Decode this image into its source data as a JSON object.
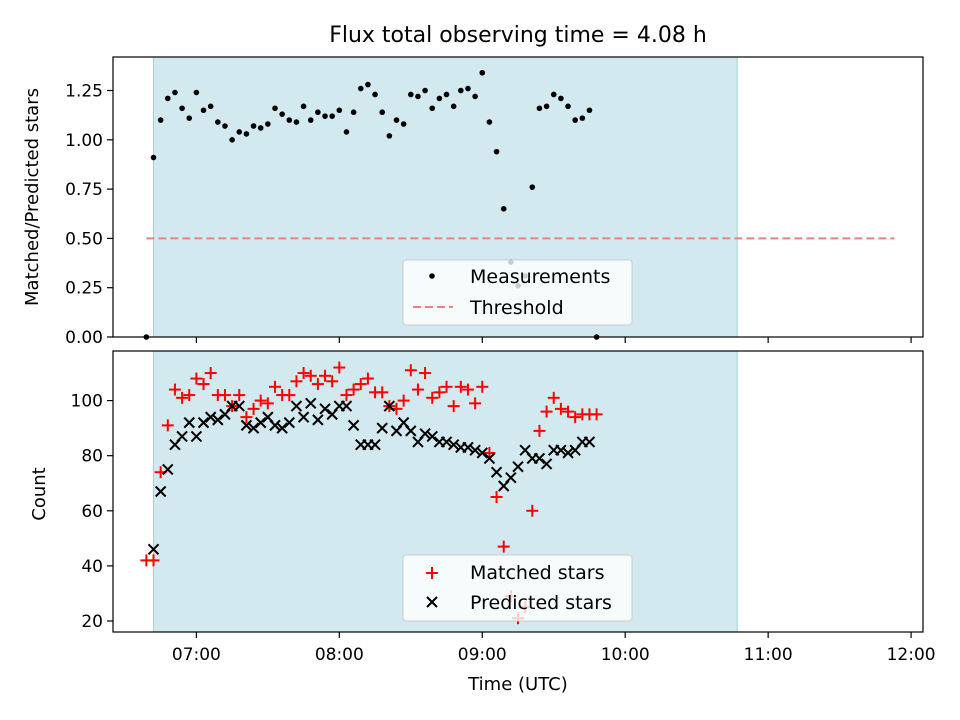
{
  "chart_data": [
    {
      "type": "scatter",
      "title": "Flux total observing time = 4.08 h",
      "ylabel": "Matched/Predicted stars",
      "xlabel": "",
      "xlim": [
        "06:25",
        "12:05"
      ],
      "ylim": [
        0,
        1.42
      ],
      "yticks": [
        0.0,
        0.25,
        0.5,
        0.75,
        1.0,
        1.25
      ],
      "ytick_labels": [
        "0.00",
        "0.25",
        "0.50",
        "0.75",
        "1.00",
        "1.25"
      ],
      "shaded_interval": [
        "06:42",
        "10:47"
      ],
      "shade_color": "#d3e9f0",
      "threshold": {
        "name": "Threshold",
        "value": 0.5,
        "x": [
          "06:39",
          "11:53"
        ],
        "color": "#f08080"
      },
      "legend": {
        "placement": "lower-center",
        "entries": [
          "Measurements",
          "Threshold"
        ]
      },
      "series": [
        {
          "name": "Measurements",
          "color": "#000000",
          "marker": "dot",
          "points": [
            [
              "06:39",
              0.0
            ],
            [
              "06:42",
              0.91
            ],
            [
              "06:45",
              1.1
            ],
            [
              "06:48",
              1.21
            ],
            [
              "06:51",
              1.24
            ],
            [
              "06:54",
              1.16
            ],
            [
              "06:57",
              1.11
            ],
            [
              "07:00",
              1.24
            ],
            [
              "07:03",
              1.15
            ],
            [
              "07:06",
              1.17
            ],
            [
              "07:09",
              1.09
            ],
            [
              "07:12",
              1.07
            ],
            [
              "07:15",
              1.0
            ],
            [
              "07:18",
              1.04
            ],
            [
              "07:21",
              1.03
            ],
            [
              "07:24",
              1.07
            ],
            [
              "07:27",
              1.06
            ],
            [
              "07:30",
              1.08
            ],
            [
              "07:33",
              1.16
            ],
            [
              "07:36",
              1.13
            ],
            [
              "07:39",
              1.1
            ],
            [
              "07:42",
              1.09
            ],
            [
              "07:45",
              1.17
            ],
            [
              "07:48",
              1.1
            ],
            [
              "07:51",
              1.14
            ],
            [
              "07:54",
              1.12
            ],
            [
              "07:57",
              1.12
            ],
            [
              "08:00",
              1.15
            ],
            [
              "08:03",
              1.04
            ],
            [
              "08:06",
              1.14
            ],
            [
              "08:09",
              1.26
            ],
            [
              "08:12",
              1.28
            ],
            [
              "08:15",
              1.23
            ],
            [
              "08:18",
              1.14
            ],
            [
              "08:21",
              1.02
            ],
            [
              "08:24",
              1.1
            ],
            [
              "08:27",
              1.08
            ],
            [
              "08:30",
              1.23
            ],
            [
              "08:33",
              1.22
            ],
            [
              "08:36",
              1.25
            ],
            [
              "08:39",
              1.16
            ],
            [
              "08:42",
              1.21
            ],
            [
              "08:45",
              1.23
            ],
            [
              "08:48",
              1.17
            ],
            [
              "08:51",
              1.25
            ],
            [
              "08:54",
              1.26
            ],
            [
              "08:57",
              1.22
            ],
            [
              "09:00",
              1.34
            ],
            [
              "09:03",
              1.09
            ],
            [
              "09:06",
              0.94
            ],
            [
              "09:09",
              0.65
            ],
            [
              "09:12",
              0.38
            ],
            [
              "09:15",
              0.26
            ],
            [
              "09:18",
              0.31
            ],
            [
              "09:21",
              0.76
            ],
            [
              "09:24",
              1.16
            ],
            [
              "09:27",
              1.17
            ],
            [
              "09:30",
              1.23
            ],
            [
              "09:33",
              1.21
            ],
            [
              "09:36",
              1.17
            ],
            [
              "09:39",
              1.1
            ],
            [
              "09:42",
              1.11
            ],
            [
              "09:45",
              1.15
            ],
            [
              "09:48",
              0.0
            ]
          ]
        }
      ]
    },
    {
      "type": "scatter",
      "title": "",
      "xlabel": "Time (UTC)",
      "ylabel": "Count",
      "xlim": [
        "06:25",
        "12:05"
      ],
      "ylim": [
        16,
        118
      ],
      "xticks": [
        "07:00",
        "08:00",
        "09:00",
        "10:00",
        "11:00",
        "12:00"
      ],
      "yticks": [
        20,
        40,
        60,
        80,
        100
      ],
      "ytick_labels": [
        "20",
        "40",
        "60",
        "80",
        "100"
      ],
      "shaded_interval": [
        "06:42",
        "10:47"
      ],
      "shade_color": "#d3e9f0",
      "legend": {
        "placement": "lower-center",
        "entries": [
          "Matched stars",
          "Predicted stars"
        ]
      },
      "series": [
        {
          "name": "Matched stars",
          "color": "#ff0000",
          "marker": "plus",
          "x": [
            "06:39",
            "06:42",
            "06:45",
            "06:48",
            "06:51",
            "06:54",
            "06:57",
            "07:00",
            "07:03",
            "07:06",
            "07:09",
            "07:12",
            "07:15",
            "07:18",
            "07:21",
            "07:24",
            "07:27",
            "07:30",
            "07:33",
            "07:36",
            "07:39",
            "07:42",
            "07:45",
            "07:48",
            "07:51",
            "07:54",
            "07:57",
            "08:00",
            "08:03",
            "08:06",
            "08:09",
            "08:12",
            "08:15",
            "08:18",
            "08:21",
            "08:24",
            "08:27",
            "08:30",
            "08:33",
            "08:36",
            "08:39",
            "08:42",
            "08:45",
            "08:48",
            "08:51",
            "08:54",
            "08:57",
            "09:00",
            "09:03",
            "09:06",
            "09:09",
            "09:12",
            "09:15",
            "09:18",
            "09:21",
            "09:24",
            "09:27",
            "09:30",
            "09:33",
            "09:36",
            "09:39",
            "09:42",
            "09:45",
            "09:48"
          ],
          "values": [
            42,
            42,
            74,
            91,
            104,
            101,
            102,
            108,
            106,
            110,
            102,
            102,
            98,
            102,
            94,
            97,
            100,
            99,
            105,
            102,
            102,
            107,
            110,
            109,
            106,
            109,
            107,
            112,
            102,
            104,
            106,
            108,
            103,
            103,
            98,
            97,
            100,
            111,
            104,
            110,
            101,
            103,
            105,
            98,
            105,
            104,
            99,
            105,
            81,
            65,
            47,
            29,
            21,
            25,
            60,
            89,
            96,
            101,
            97,
            96,
            94,
            95,
            95,
            95
          ]
        },
        {
          "name": "Predicted stars",
          "color": "#000000",
          "marker": "x",
          "x": [
            "06:42",
            "06:45",
            "06:48",
            "06:51",
            "06:54",
            "06:57",
            "07:00",
            "07:03",
            "07:06",
            "07:09",
            "07:12",
            "07:15",
            "07:18",
            "07:21",
            "07:24",
            "07:27",
            "07:30",
            "07:33",
            "07:36",
            "07:39",
            "07:42",
            "07:45",
            "07:48",
            "07:51",
            "07:54",
            "07:57",
            "08:00",
            "08:03",
            "08:06",
            "08:09",
            "08:12",
            "08:15",
            "08:18",
            "08:21",
            "08:24",
            "08:27",
            "08:30",
            "08:33",
            "08:36",
            "08:39",
            "08:42",
            "08:45",
            "08:48",
            "08:51",
            "08:54",
            "08:57",
            "09:00",
            "09:03",
            "09:06",
            "09:09",
            "09:12",
            "09:15",
            "09:18",
            "09:21",
            "09:24",
            "09:27",
            "09:30",
            "09:33",
            "09:36",
            "09:39",
            "09:42",
            "09:45"
          ],
          "values": [
            46,
            67,
            75,
            84,
            87,
            92,
            87,
            92,
            94,
            93,
            95,
            98,
            98,
            91,
            90,
            92,
            94,
            91,
            90,
            92,
            98,
            94,
            99,
            93,
            97,
            95,
            98,
            98,
            91,
            84,
            84,
            84,
            90,
            98,
            89,
            92,
            89,
            85,
            88,
            87,
            85,
            85,
            84,
            83,
            83,
            82,
            81,
            79,
            74,
            69,
            72,
            76,
            82,
            79,
            79,
            77,
            82,
            82,
            81,
            82,
            85,
            85
          ]
        }
      ]
    }
  ]
}
